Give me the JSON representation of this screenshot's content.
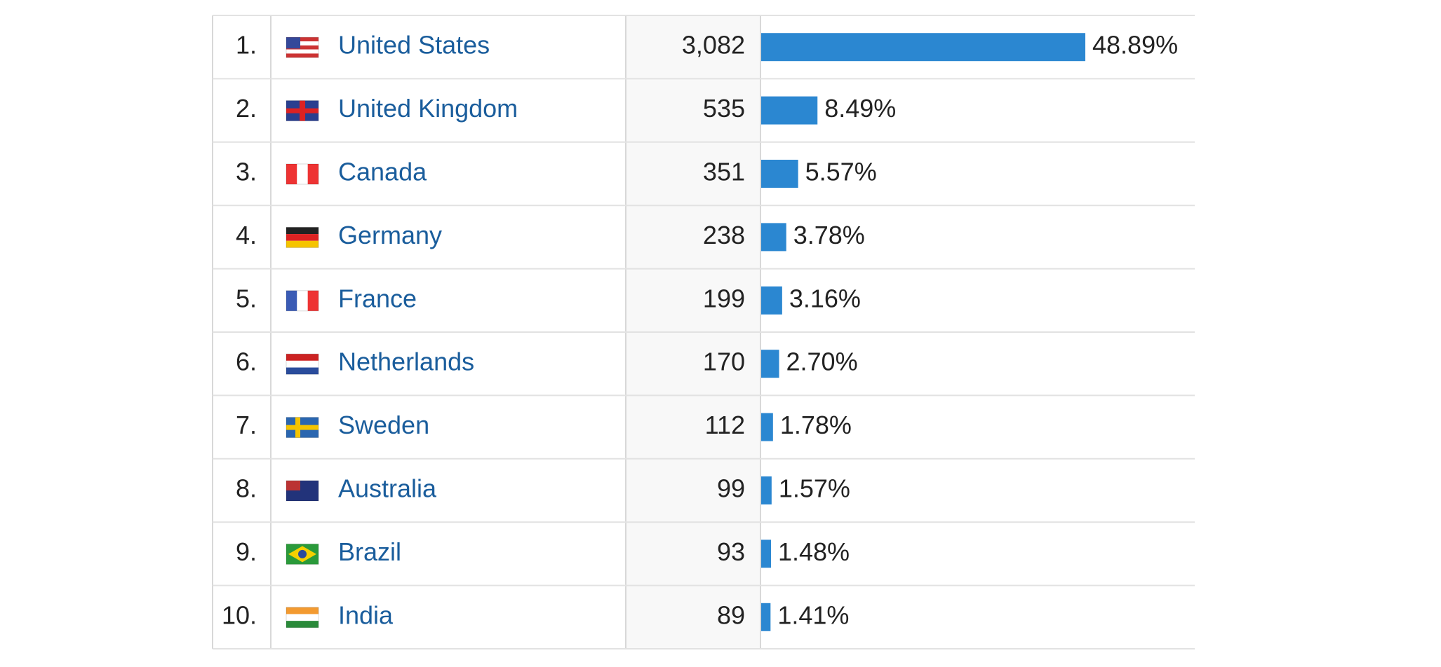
{
  "table": {
    "rows": [
      {
        "rank": "1.",
        "country": "United States",
        "sessions": "3,082",
        "share": 48.89,
        "share_label": "48.89%"
      },
      {
        "rank": "2.",
        "country": "United Kingdom",
        "sessions": "535",
        "share": 8.49,
        "share_label": "8.49%"
      },
      {
        "rank": "3.",
        "country": "Canada",
        "sessions": "351",
        "share": 5.57,
        "share_label": "5.57%"
      },
      {
        "rank": "4.",
        "country": "Germany",
        "sessions": "238",
        "share": 3.78,
        "share_label": "3.78%"
      },
      {
        "rank": "5.",
        "country": "France",
        "sessions": "199",
        "share": 3.16,
        "share_label": "3.16%"
      },
      {
        "rank": "6.",
        "country": "Netherlands",
        "sessions": "170",
        "share": 2.7,
        "share_label": "2.70%"
      },
      {
        "rank": "7.",
        "country": "Sweden",
        "sessions": "112",
        "share": 1.78,
        "share_label": "1.78%"
      },
      {
        "rank": "8.",
        "country": "Australia",
        "sessions": "99",
        "share": 1.57,
        "share_label": "1.57%"
      },
      {
        "rank": "9.",
        "country": "Brazil",
        "sessions": "93",
        "share": 1.48,
        "share_label": "1.48%"
      },
      {
        "rank": "10.",
        "country": "India",
        "sessions": "89",
        "share": 1.41,
        "share_label": "1.41%"
      }
    ]
  }
}
